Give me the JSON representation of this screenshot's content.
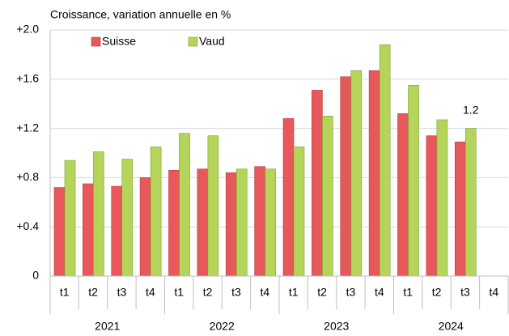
{
  "chart_data": {
    "type": "bar",
    "title": "Croissance, variation annuelle en %",
    "categories": [
      "t1",
      "t2",
      "t3",
      "t4",
      "t1",
      "t2",
      "t3",
      "t4",
      "t1",
      "t2",
      "t3",
      "t4",
      "t1",
      "t2",
      "t3",
      "t4"
    ],
    "years": [
      "2021",
      "2022",
      "2023",
      "2024"
    ],
    "series": [
      {
        "name": "Suisse",
        "color": "#e8585a",
        "border": "#b23a3c",
        "values": [
          0.72,
          0.75,
          0.73,
          0.8,
          0.86,
          0.87,
          0.84,
          0.89,
          1.28,
          1.51,
          1.62,
          1.67,
          1.32,
          1.14,
          1.09,
          null
        ]
      },
      {
        "name": "Vaud",
        "color": "#b5d55a",
        "border": "#7e9e30",
        "values": [
          0.94,
          1.01,
          0.95,
          1.05,
          1.16,
          1.14,
          0.87,
          0.87,
          1.05,
          1.3,
          1.67,
          1.88,
          1.55,
          1.27,
          1.2,
          null
        ],
        "value_labels": [
          null,
          null,
          null,
          null,
          null,
          null,
          null,
          null,
          null,
          null,
          null,
          null,
          null,
          null,
          "1.2",
          null
        ]
      }
    ],
    "ylim": [
      0,
      2.0
    ],
    "yticks": [
      0,
      {
        "value": 0.4,
        "label": "+0.4"
      },
      {
        "value": 0.8,
        "label": "+0.8"
      },
      {
        "value": 1.2,
        "label": "+1.2"
      },
      {
        "value": 1.6,
        "label": "+1.6"
      },
      {
        "value": 2.0,
        "label": "+2.0"
      }
    ],
    "grid": true
  }
}
